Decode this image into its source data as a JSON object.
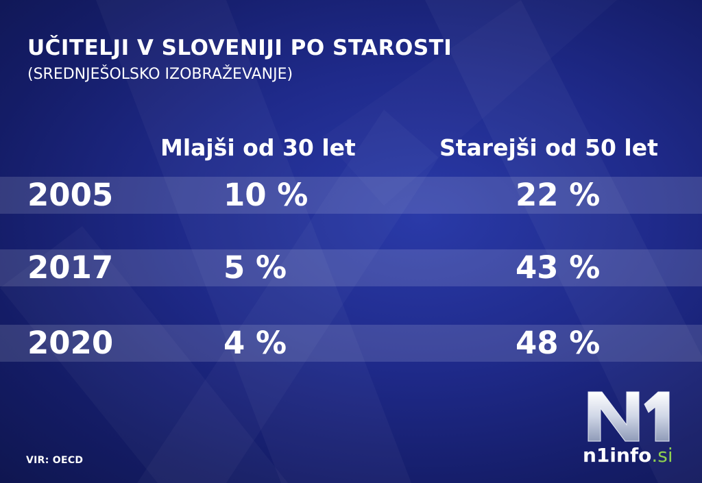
{
  "title": "UČITELJI V SLOVENIJI PO STAROSTI",
  "subtitle": "(SREDNJEŠOLSKO IZOBRAŽEVANJE)",
  "source": "VIR: OECD",
  "logo": {
    "mark": "N1",
    "name": "n1info",
    "tld": ".si"
  },
  "colors": {
    "background": "#1f2a8a",
    "text": "#ffffff",
    "band": "#ffffff24",
    "logo_accent": "#8fd14f"
  },
  "chart_data": {
    "type": "table",
    "title": "UČITELJI V SLOVENIJI PO STAROSTI",
    "subtitle": "(SREDNJEŠOLSKO IZOBRAŽEVANJE)",
    "columns": [
      "Mlajši od 30 let",
      "Starejši od 50 let"
    ],
    "rows": [
      {
        "year": "2005",
        "cells": [
          "10 %",
          "22 %"
        ],
        "values": [
          10,
          22
        ]
      },
      {
        "year": "2017",
        "cells": [
          "5 %",
          "43 %"
        ],
        "values": [
          5,
          43
        ]
      },
      {
        "year": "2020",
        "cells": [
          "4 %",
          "48 %"
        ],
        "values": [
          4,
          48
        ]
      }
    ]
  }
}
